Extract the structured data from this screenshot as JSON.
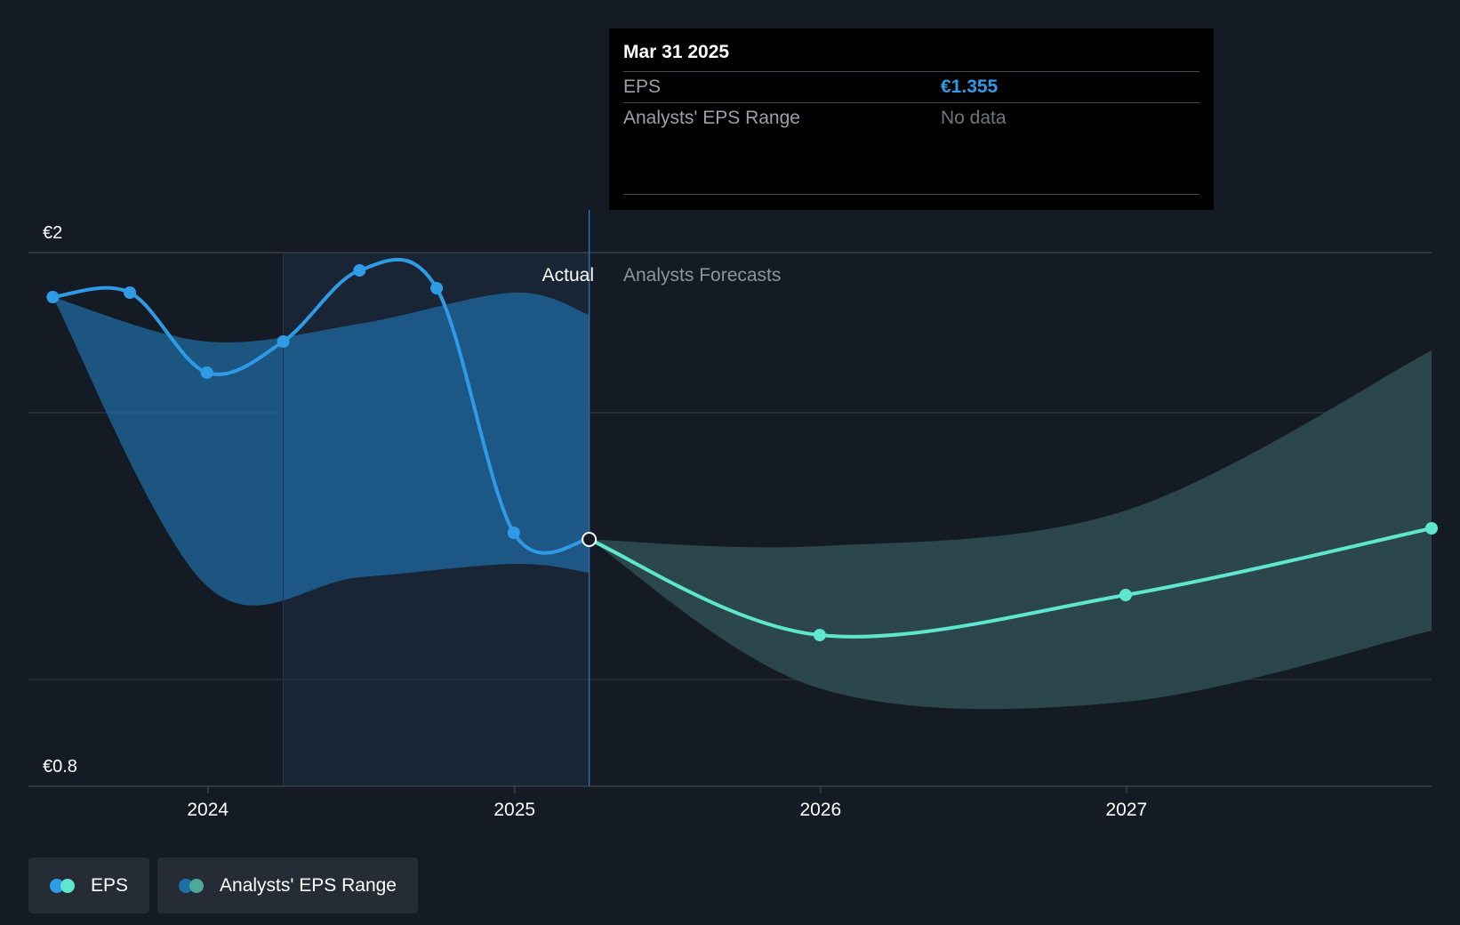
{
  "chart_data": {
    "type": "line",
    "x_axis": {
      "ticks": [
        "2024",
        "2025",
        "2026",
        "2027"
      ],
      "range": [
        "2023-06-01",
        "2027-12-31"
      ]
    },
    "y_axis": {
      "min": 0.8,
      "max": 2,
      "labels": [
        "€2",
        "€0.8"
      ]
    },
    "section_labels": {
      "actual": "Actual",
      "forecast": "Analysts Forecasts"
    },
    "series": [
      {
        "name": "EPS",
        "kind": "actual",
        "color": "#2e9be4",
        "points": [
          {
            "x": "2023-06-30",
            "y": 1.9
          },
          {
            "x": "2023-09-30",
            "y": 1.91
          },
          {
            "x": "2023-12-31",
            "y": 1.73
          },
          {
            "x": "2024-03-31",
            "y": 1.8
          },
          {
            "x": "2024-06-30",
            "y": 1.96
          },
          {
            "x": "2024-09-30",
            "y": 1.92
          },
          {
            "x": "2024-12-31",
            "y": 1.37
          },
          {
            "x": "2025-03-31",
            "y": 1.355
          }
        ]
      },
      {
        "name": "EPS",
        "kind": "forecast",
        "color": "#5ee6cf",
        "points": [
          {
            "x": "2025-03-31",
            "y": 1.355
          },
          {
            "x": "2025-12-31",
            "y": 1.14
          },
          {
            "x": "2026-12-31",
            "y": 1.23
          },
          {
            "x": "2027-12-31",
            "y": 1.38
          }
        ]
      }
    ],
    "range_bands": [
      {
        "name": "Analysts' EPS Range",
        "kind": "actual",
        "color": "#1e6ea8",
        "upper": [
          {
            "x": "2023-06-30",
            "y": 1.9
          },
          {
            "x": "2023-12-31",
            "y": 1.8
          },
          {
            "x": "2024-06-30",
            "y": 1.84
          },
          {
            "x": "2024-12-31",
            "y": 1.91
          },
          {
            "x": "2025-03-31",
            "y": 1.86
          }
        ],
        "lower": [
          {
            "x": "2023-06-30",
            "y": 1.9
          },
          {
            "x": "2023-12-31",
            "y": 1.25
          },
          {
            "x": "2024-06-30",
            "y": 1.27
          },
          {
            "x": "2024-12-31",
            "y": 1.3
          },
          {
            "x": "2025-03-31",
            "y": 1.28
          }
        ]
      },
      {
        "name": "Analysts' EPS Range",
        "kind": "forecast",
        "color": "#2c4a4f",
        "upper": [
          {
            "x": "2025-03-31",
            "y": 1.355
          },
          {
            "x": "2025-12-31",
            "y": 1.34
          },
          {
            "x": "2026-12-31",
            "y": 1.42
          },
          {
            "x": "2027-12-31",
            "y": 1.78
          }
        ],
        "lower": [
          {
            "x": "2025-03-31",
            "y": 1.355
          },
          {
            "x": "2025-12-31",
            "y": 1.02
          },
          {
            "x": "2026-12-31",
            "y": 0.99
          },
          {
            "x": "2027-12-31",
            "y": 1.15
          }
        ]
      }
    ],
    "gridlines": [
      2,
      1.64,
      1.04
    ],
    "highlight_start": "2024-03-31",
    "divider": "2025-03-31"
  },
  "tooltip": {
    "date": "Mar 31 2025",
    "rows": [
      {
        "label": "EPS",
        "value": "€1.355"
      },
      {
        "label": "Analysts' EPS Range",
        "value": "No data"
      }
    ]
  },
  "legend": [
    {
      "label": "EPS",
      "colors": [
        "#2e9be4",
        "#5ee6cf"
      ]
    },
    {
      "label": "Analysts' EPS Range",
      "colors": [
        "#1e6ea8",
        "#4fa89a"
      ]
    }
  ]
}
